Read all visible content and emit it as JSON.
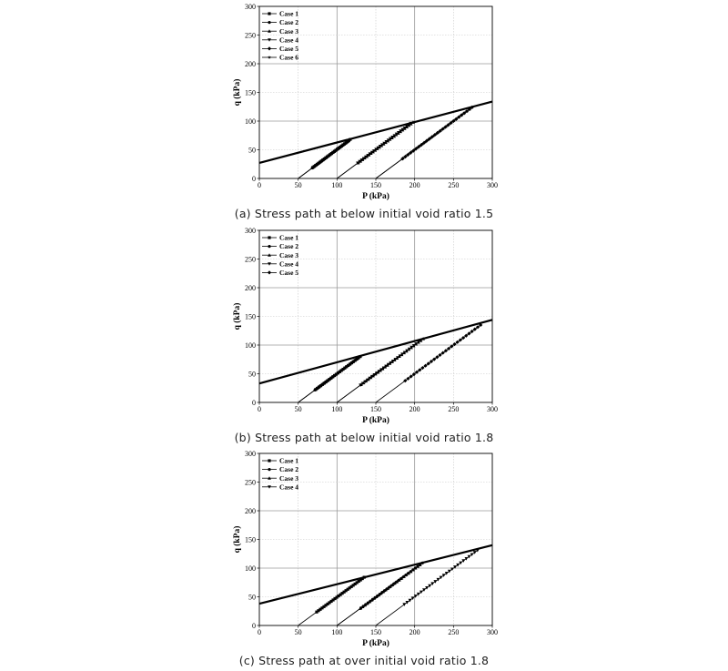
{
  "chart_data": [
    {
      "type": "line",
      "caption": "(a) Stress path at below initial void ratio 1.5",
      "xlabel": "P (kPa)",
      "ylabel": "q (kPa)",
      "xlim": [
        0,
        300
      ],
      "ylim": [
        0,
        300
      ],
      "xticks": [
        0,
        50,
        100,
        150,
        200,
        250,
        300
      ],
      "yticks": [
        0,
        50,
        100,
        150,
        200,
        250,
        300
      ],
      "grid": true,
      "legend_position": "top-left",
      "legend": [
        "Case 1",
        "Case 2",
        "Case 3",
        "Case 4",
        "Case 5",
        "Case 6"
      ],
      "failure_line": {
        "x": [
          0,
          300
        ],
        "y": [
          27,
          134
        ]
      },
      "paths": [
        {
          "name": "Case 1",
          "x": [
            50,
            117
          ],
          "y": [
            0,
            68
          ]
        },
        {
          "name": "Case 2",
          "x": [
            50,
            115
          ],
          "y": [
            0,
            65
          ]
        },
        {
          "name": "Case 3",
          "x": [
            100,
            198
          ],
          "y": [
            0,
            98
          ]
        },
        {
          "name": "Case 4",
          "x": [
            100,
            195
          ],
          "y": [
            0,
            96
          ]
        },
        {
          "name": "Case 5",
          "x": [
            150,
            274
          ],
          "y": [
            0,
            124
          ]
        },
        {
          "name": "Case 6",
          "x": [
            150,
            271
          ],
          "y": [
            0,
            121
          ]
        }
      ]
    },
    {
      "type": "line",
      "caption": "(b) Stress path at below initial void ratio 1.8",
      "xlabel": "P (kPa)",
      "ylabel": "q (kPa)",
      "xlim": [
        0,
        300
      ],
      "ylim": [
        0,
        300
      ],
      "xticks": [
        0,
        50,
        100,
        150,
        200,
        250,
        300
      ],
      "yticks": [
        0,
        50,
        100,
        150,
        200,
        250,
        300
      ],
      "grid": true,
      "legend_position": "top-left",
      "legend": [
        "Case 1",
        "Case 2",
        "Case 3",
        "Case 4",
        "Case 5"
      ],
      "failure_line": {
        "x": [
          0,
          300
        ],
        "y": [
          33,
          144
        ]
      },
      "paths": [
        {
          "name": "Case 1",
          "x": [
            50,
            130
          ],
          "y": [
            0,
            80
          ]
        },
        {
          "name": "Case 2",
          "x": [
            50,
            127
          ],
          "y": [
            0,
            77
          ]
        },
        {
          "name": "Case 3",
          "x": [
            100,
            211
          ],
          "y": [
            0,
            111
          ]
        },
        {
          "name": "Case 4",
          "x": [
            100,
            208
          ],
          "y": [
            0,
            108
          ]
        },
        {
          "name": "Case 5",
          "x": [
            150,
            285
          ],
          "y": [
            0,
            135
          ]
        }
      ]
    },
    {
      "type": "line",
      "caption": "(c) Stress path at over initial void ratio 1.8",
      "xlabel": "P (kPa)",
      "ylabel": "q (kPa)",
      "xlim": [
        0,
        300
      ],
      "ylim": [
        0,
        300
      ],
      "xticks": [
        0,
        50,
        100,
        150,
        200,
        250,
        300
      ],
      "yticks": [
        0,
        50,
        100,
        150,
        200,
        250,
        300
      ],
      "grid": true,
      "legend_position": "top-left",
      "legend": [
        "Case 1",
        "Case 2",
        "Case 3",
        "Case 4"
      ],
      "failure_line": {
        "x": [
          0,
          300
        ],
        "y": [
          38,
          140
        ]
      },
      "paths": [
        {
          "name": "Case 1",
          "x": [
            50,
            135
          ],
          "y": [
            0,
            84
          ]
        },
        {
          "name": "Case 2",
          "x": [
            100,
            210
          ],
          "y": [
            0,
            109
          ]
        },
        {
          "name": "Case 3",
          "x": [
            100,
            207
          ],
          "y": [
            0,
            106
          ]
        },
        {
          "name": "Case 4",
          "x": [
            150,
            281
          ],
          "y": [
            0,
            131
          ]
        }
      ]
    }
  ]
}
